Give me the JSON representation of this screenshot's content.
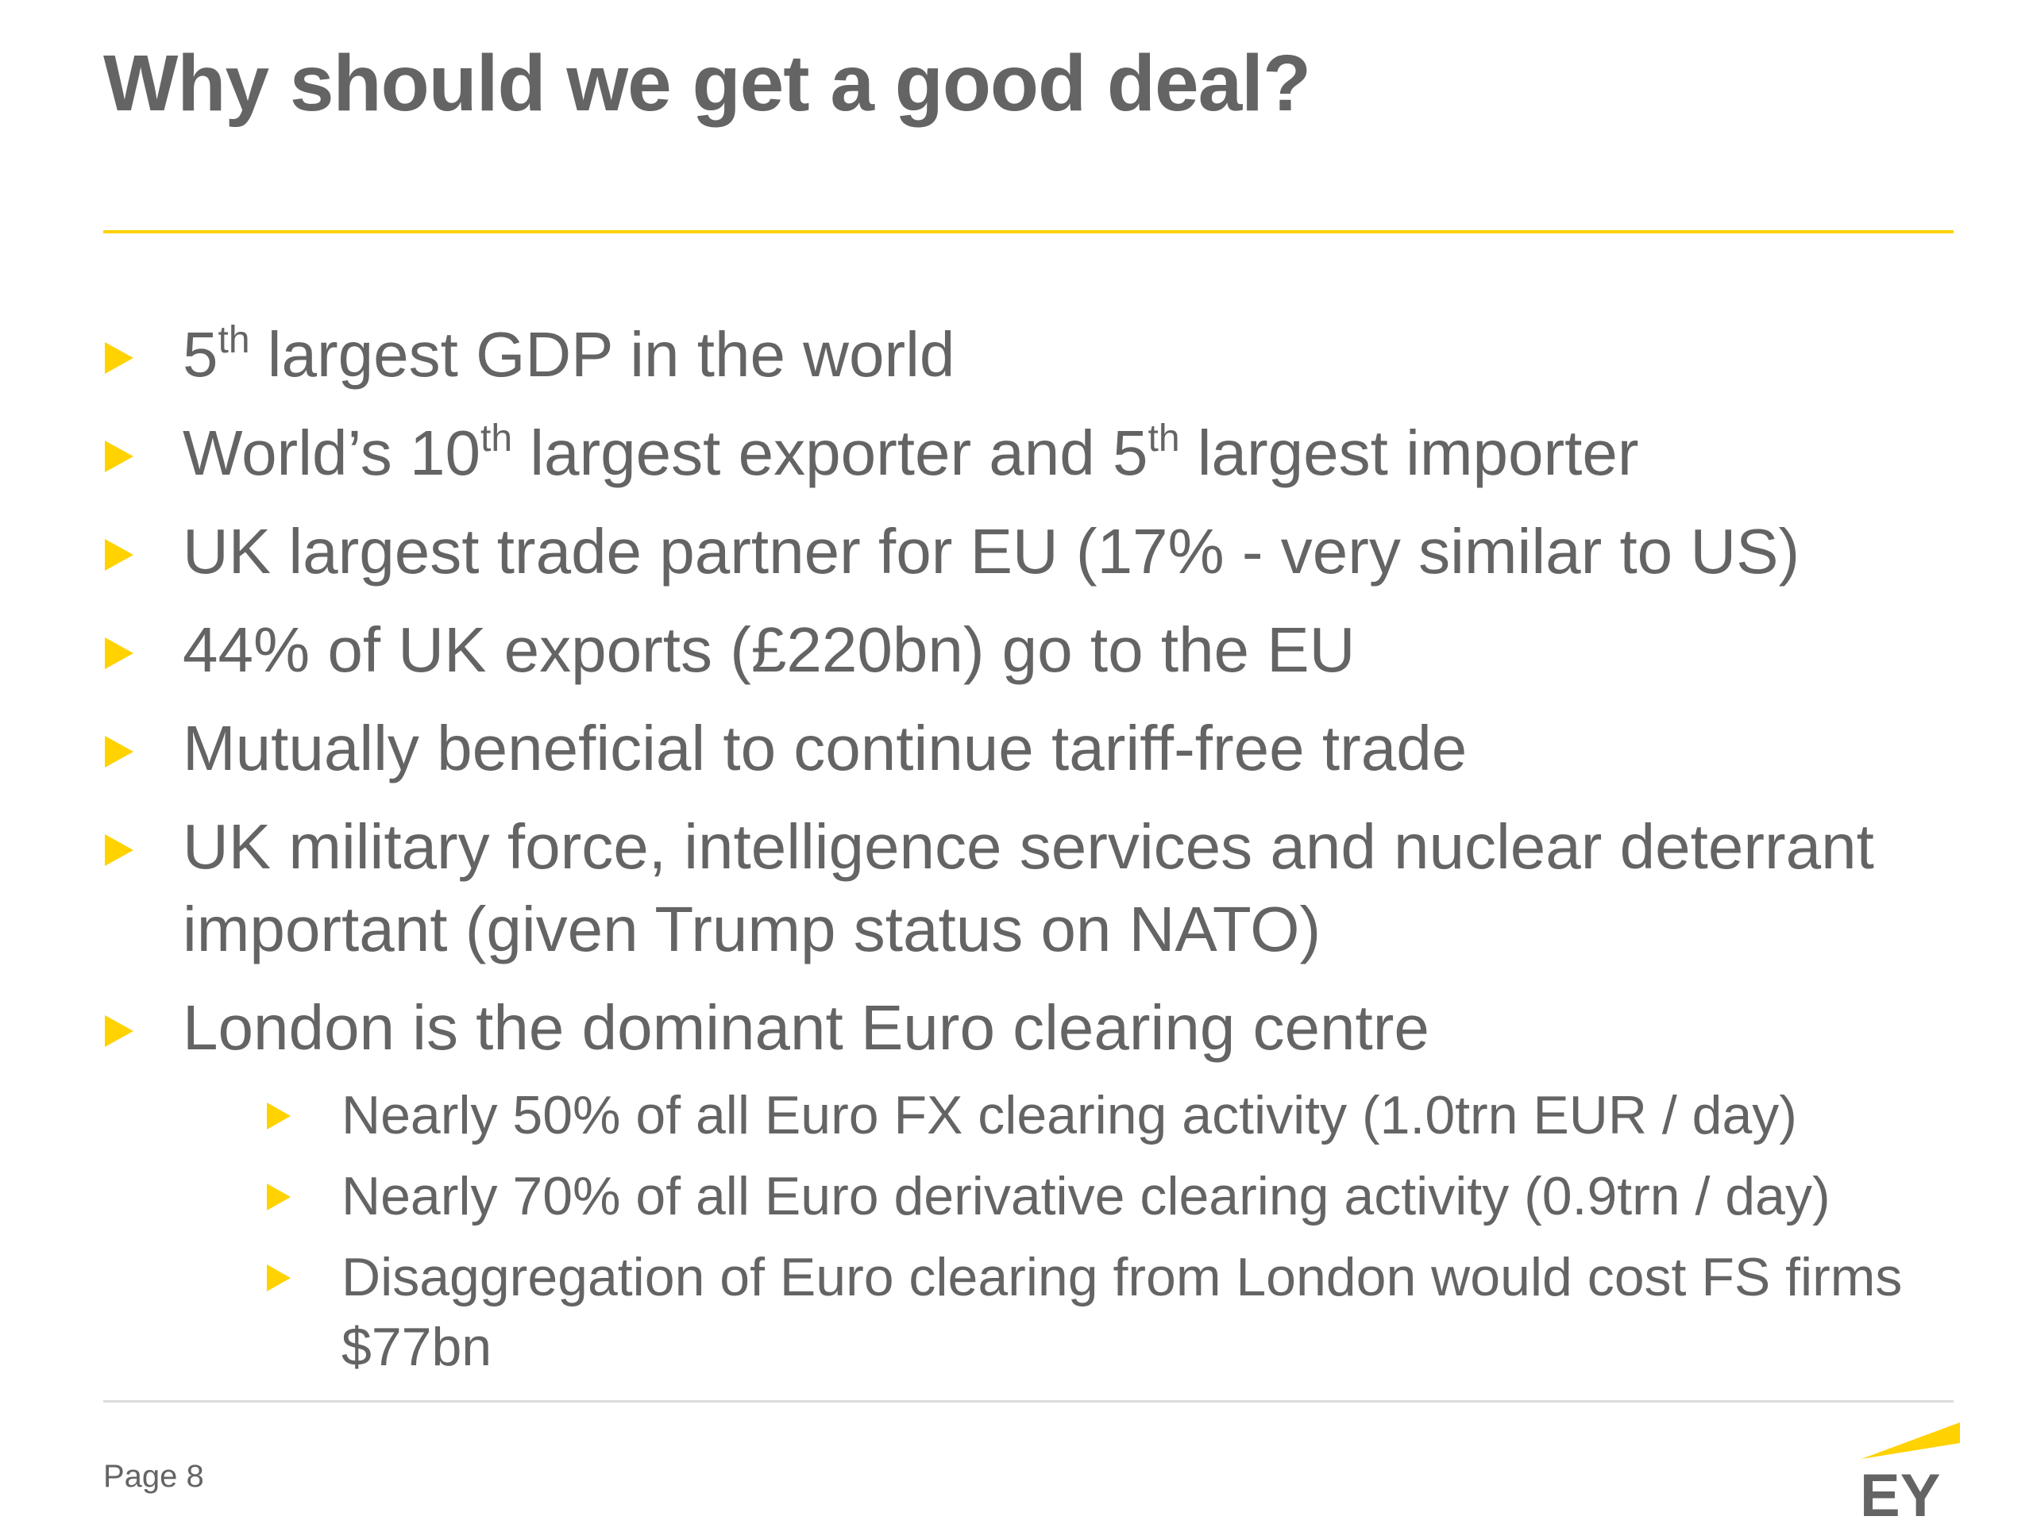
{
  "slide": {
    "title": "Why should we get a good deal?",
    "bullets": [
      {
        "parts": [
          {
            "t": "5"
          },
          {
            "sup": "th"
          },
          {
            "t": " largest GDP in the world"
          }
        ]
      },
      {
        "parts": [
          {
            "t": "World’s 10"
          },
          {
            "sup": "th"
          },
          {
            "t": " largest exporter and 5"
          },
          {
            "sup": "th"
          },
          {
            "t": " largest importer"
          }
        ]
      },
      {
        "parts": [
          {
            "t": "UK largest trade partner for EU (17% - very similar to US)"
          }
        ]
      },
      {
        "parts": [
          {
            "t": "44% of UK exports (£220bn) go to the EU"
          }
        ]
      },
      {
        "parts": [
          {
            "t": "Mutually beneficial to continue tariff-free trade"
          }
        ]
      },
      {
        "parts": [
          {
            "t": "UK military force, intelligence services and nuclear deterrant important (given Trump status on NATO)"
          }
        ]
      },
      {
        "parts": [
          {
            "t": "London is the dominant Euro clearing centre"
          }
        ]
      }
    ],
    "sub_bullets": [
      "Nearly 50% of all Euro FX clearing activity (1.0trn EUR / day)",
      "Nearly 70% of all Euro derivative clearing activity (0.9trn / day)",
      "Disaggregation of Euro clearing from London would cost FS firms $77bn"
    ],
    "footer": {
      "page_label": "Page 8"
    },
    "logo": {
      "text": "EY",
      "icon": "ey-logo-icon",
      "accent_color": "#ffd200",
      "text_color": "#646464"
    }
  }
}
